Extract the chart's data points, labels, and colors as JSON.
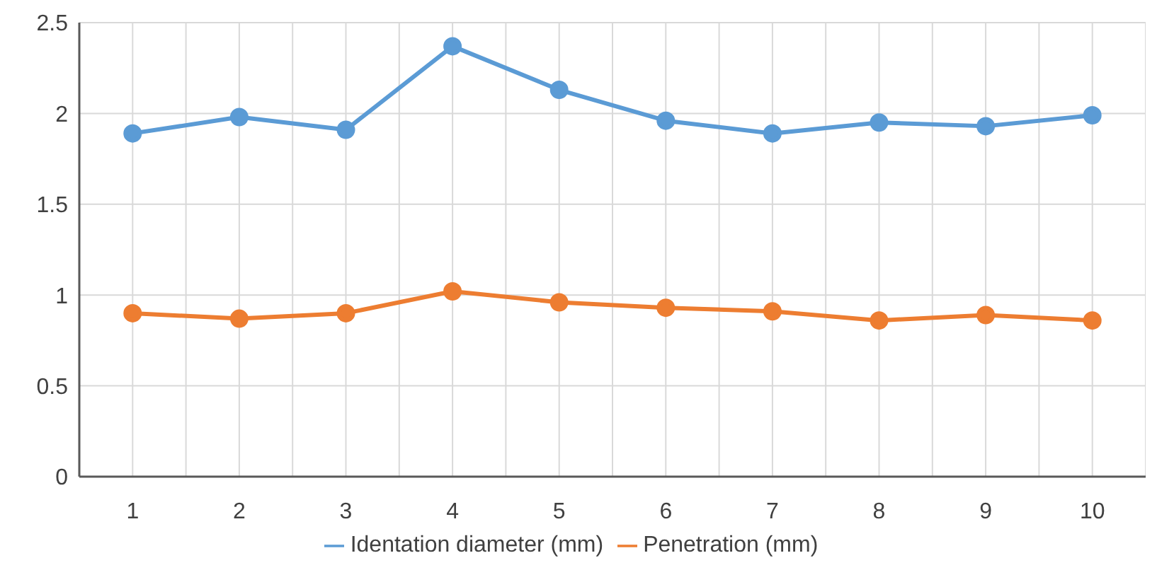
{
  "chart_data": {
    "type": "line",
    "categories": [
      "1",
      "2",
      "3",
      "4",
      "5",
      "6",
      "7",
      "8",
      "9",
      "10"
    ],
    "series": [
      {
        "name": "Identation diameter (mm)",
        "color": "#5b9bd5",
        "values": [
          1.89,
          1.98,
          1.91,
          2.37,
          2.13,
          1.96,
          1.89,
          1.95,
          1.93,
          1.99
        ]
      },
      {
        "name": "Penetration (mm)",
        "color": "#ed7d31",
        "values": [
          0.9,
          0.87,
          0.9,
          1.02,
          0.96,
          0.93,
          0.91,
          0.86,
          0.89,
          0.86
        ]
      }
    ],
    "ylim": [
      0,
      2.5
    ],
    "yticks": [
      0,
      0.5,
      1,
      1.5,
      2,
      2.5
    ],
    "grid": true,
    "legend": "bottom",
    "marker": "circle",
    "line_style": "solid"
  }
}
